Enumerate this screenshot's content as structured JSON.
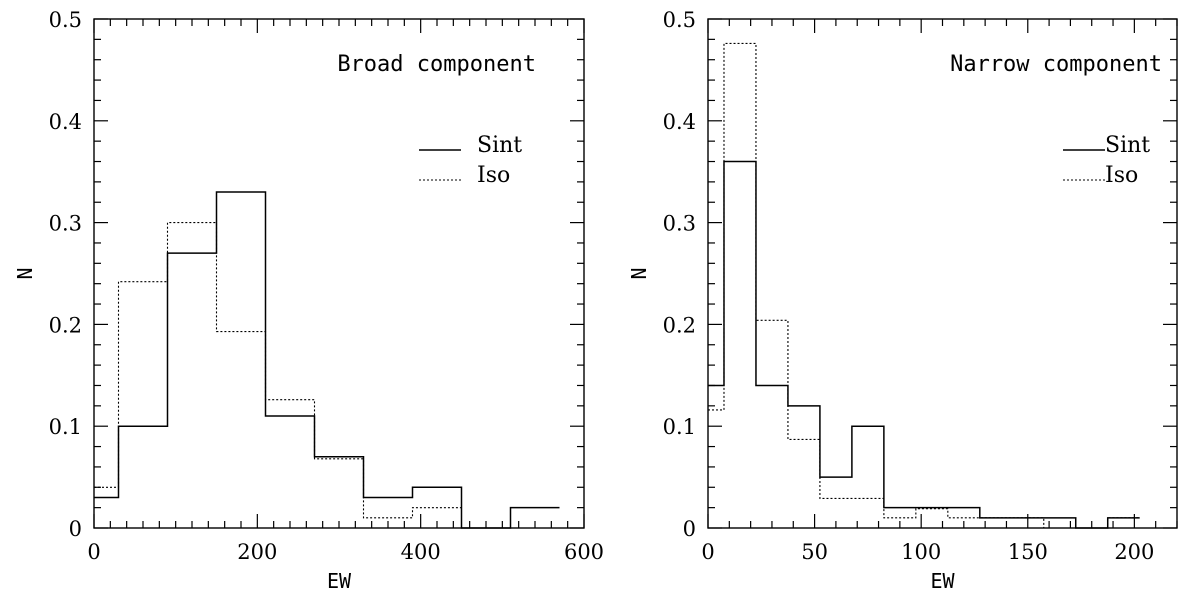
{
  "chart_data": [
    {
      "type": "histogram",
      "title": "",
      "annotation": "Broad component",
      "xlabel": "EW",
      "ylabel": "N",
      "xlim": [
        0,
        600
      ],
      "ylim": [
        0,
        0.5
      ],
      "xticks": [
        0,
        200,
        400,
        600
      ],
      "yticks": [
        0,
        0.1,
        0.2,
        0.3,
        0.4,
        0.5
      ],
      "xtick_labels": [
        "0",
        "200",
        "400",
        "600"
      ],
      "ytick_labels": [
        "0",
        "0.1",
        "0.2",
        "0.3",
        "0.4",
        "0.5"
      ],
      "x_minor_step": 20,
      "y_minor_step": 0.02,
      "legend_position": "upper-right",
      "series": [
        {
          "name": "Sint",
          "style": "solid",
          "bin_edges": [
            0,
            30,
            90,
            150,
            210,
            270,
            330,
            390,
            450,
            510,
            570
          ],
          "values": [
            0.03,
            0.1,
            0.27,
            0.33,
            0.11,
            0.07,
            0.03,
            0.04,
            0.0,
            0.02
          ]
        },
        {
          "name": "Iso",
          "style": "dotted",
          "bin_edges": [
            0,
            30,
            90,
            150,
            210,
            270,
            330,
            390,
            450
          ],
          "values": [
            0.04,
            0.242,
            0.3,
            0.193,
            0.126,
            0.068,
            0.01,
            0.02
          ]
        }
      ]
    },
    {
      "type": "histogram",
      "title": "",
      "annotation": "Narrow component",
      "xlabel": "EW",
      "ylabel": "N",
      "xlim": [
        0,
        220
      ],
      "ylim": [
        0,
        0.5
      ],
      "xticks": [
        0,
        50,
        100,
        150,
        200
      ],
      "yticks": [
        0,
        0.1,
        0.2,
        0.3,
        0.4,
        0.5
      ],
      "xtick_labels": [
        "0",
        "50",
        "100",
        "150",
        "200"
      ],
      "ytick_labels": [
        "0",
        "0.1",
        "0.2",
        "0.3",
        "0.4",
        "0.5"
      ],
      "x_minor_step": 10,
      "y_minor_step": 0.02,
      "legend_position": "upper-right",
      "series": [
        {
          "name": "Sint",
          "style": "solid",
          "bin_edges": [
            0,
            7.5,
            22.5,
            37.5,
            52.5,
            67.5,
            82.5,
            97.5,
            112.5,
            127.5,
            142.5,
            157.5,
            172.5,
            187.5,
            202.5
          ],
          "values": [
            0.14,
            0.36,
            0.14,
            0.12,
            0.05,
            0.1,
            0.02,
            0.02,
            0.02,
            0.01,
            0.01,
            0.01,
            0.0,
            0.01
          ]
        },
        {
          "name": "Iso",
          "style": "dotted",
          "bin_edges": [
            0,
            7.5,
            22.5,
            37.5,
            52.5,
            67.5,
            82.5,
            97.5,
            112.5,
            127.5,
            142.5,
            157.5,
            172.5,
            187.5,
            202.5
          ],
          "values": [
            0.116,
            0.476,
            0.204,
            0.087,
            0.029,
            0.029,
            0.01,
            0.019,
            0.01,
            0.01,
            0.01,
            0.0,
            0.0,
            0.01
          ]
        }
      ]
    }
  ]
}
